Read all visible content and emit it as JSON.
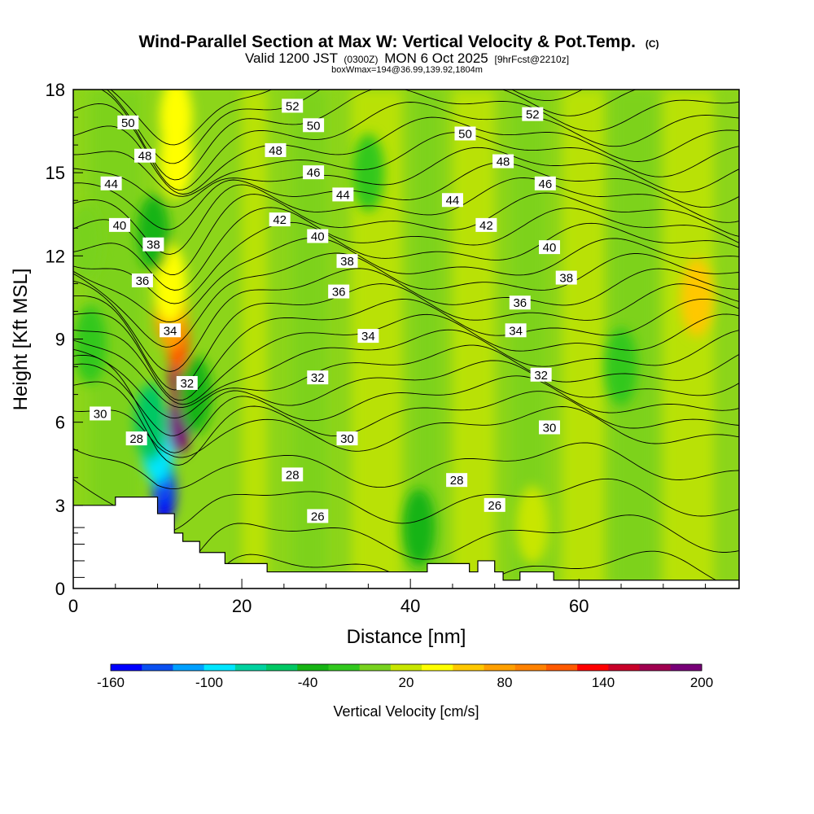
{
  "chart_data": {
    "type": "heatmap",
    "title": "Wind-Parallel Section at Max W: Vertical Velocity & Pot.Temp.",
    "title_mark": "(C)",
    "subtitle_a": "Valid 1200 JST",
    "subtitle_b": "(0300Z)",
    "subtitle_c": "MON 6 Oct 2025",
    "subtitle_d": "[9hrFcst@2210z]",
    "subtitle_e": "boxWmax=194@36.99,139.92,1804m",
    "xlabel": "Distance [nm]",
    "ylabel": "Height [Kft MSL]",
    "xlim": [
      0,
      79
    ],
    "ylim": [
      0,
      18
    ],
    "x_ticks": [
      0,
      20,
      40,
      60
    ],
    "y_ticks": [
      0,
      3,
      6,
      9,
      12,
      15,
      18
    ],
    "colorbar": {
      "label": "Vertical Velocity [cm/s]",
      "min": -160,
      "max": 200,
      "tick_values": [
        -160,
        -100,
        -40,
        20,
        80,
        140,
        200
      ],
      "colors": [
        "#0000ff",
        "#0a50f0",
        "#00a0ff",
        "#00e6ff",
        "#00d2a0",
        "#00c864",
        "#16b414",
        "#32c81e",
        "#78d21e",
        "#c8e600",
        "#ffff00",
        "#ffc800",
        "#ffa000",
        "#ff8200",
        "#ff5a00",
        "#ff0000",
        "#c80028",
        "#a00050",
        "#780078"
      ]
    },
    "terrain_kft": [
      [
        0,
        3.0
      ],
      [
        5,
        3.0
      ],
      [
        5,
        3.3
      ],
      [
        10,
        3.3
      ],
      [
        10,
        2.7
      ],
      [
        12,
        2.7
      ],
      [
        12,
        2.0
      ],
      [
        13,
        2.0
      ],
      [
        13,
        1.7
      ],
      [
        15,
        1.7
      ],
      [
        15,
        1.3
      ],
      [
        18,
        1.3
      ],
      [
        18,
        0.9
      ],
      [
        23,
        0.9
      ],
      [
        23,
        0.6
      ],
      [
        42,
        0.6
      ],
      [
        42,
        0.9
      ],
      [
        47,
        0.9
      ],
      [
        47,
        0.6
      ],
      [
        48,
        0.6
      ],
      [
        48,
        1.0
      ],
      [
        50,
        1.0
      ],
      [
        50,
        0.6
      ],
      [
        51,
        0.6
      ],
      [
        51,
        0.3
      ],
      [
        53,
        0.3
      ],
      [
        53,
        0.6
      ],
      [
        57,
        0.6
      ],
      [
        57,
        0.3
      ],
      [
        79,
        0.3
      ]
    ],
    "w_cells": [
      {
        "x": 10.8,
        "z": 3.5,
        "w": -160
      },
      {
        "x": 10.5,
        "z": 4.3,
        "w": -130
      },
      {
        "x": 10.0,
        "z": 5.2,
        "w": -90
      },
      {
        "x": 9.2,
        "z": 6.0,
        "w": -50
      },
      {
        "x": 12.6,
        "z": 6.0,
        "w": 194
      },
      {
        "x": 12.7,
        "z": 7.5,
        "w": 180
      },
      {
        "x": 12.4,
        "z": 9.0,
        "w": 120
      },
      {
        "x": 11.6,
        "z": 10.0,
        "w": 80
      },
      {
        "x": 11.5,
        "z": 11.0,
        "w": 40
      },
      {
        "x": 12.2,
        "z": 17.0,
        "w": 45
      },
      {
        "x": 12.2,
        "z": 15.5,
        "w": 30
      },
      {
        "x": 14.5,
        "z": 7.0,
        "w": -45
      },
      {
        "x": 9.5,
        "z": 12.8,
        "w": -30
      },
      {
        "x": 41.0,
        "z": 2.2,
        "w": -30
      },
      {
        "x": 54.5,
        "z": 2.3,
        "w": 25
      },
      {
        "x": 74.0,
        "z": 10.5,
        "w": 50
      },
      {
        "x": 2.0,
        "z": 8.8,
        "w": -15
      },
      {
        "x": 1.5,
        "z": 12.5,
        "w": 10
      },
      {
        "x": 35.0,
        "z": 15.0,
        "w": -12
      },
      {
        "x": 65.0,
        "z": 8.0,
        "w": -15
      }
    ],
    "theta_levels": [
      26,
      27,
      28,
      29,
      30,
      31,
      32,
      33,
      34,
      35,
      36,
      37,
      38,
      39,
      40,
      41,
      42,
      43,
      44,
      45,
      46,
      47,
      48,
      49,
      50,
      51,
      52,
      53
    ],
    "contour_labels": [
      {
        "value": "52",
        "x": 26.0,
        "z": 17.4
      },
      {
        "value": "52",
        "x": 54.5,
        "z": 17.1
      },
      {
        "value": "50",
        "x": 6.5,
        "z": 16.8
      },
      {
        "value": "50",
        "x": 28.5,
        "z": 16.7
      },
      {
        "value": "50",
        "x": 46.5,
        "z": 16.4
      },
      {
        "value": "48",
        "x": 8.5,
        "z": 15.6
      },
      {
        "value": "48",
        "x": 24.0,
        "z": 15.8
      },
      {
        "value": "48",
        "x": 51.0,
        "z": 15.4
      },
      {
        "value": "46",
        "x": 28.5,
        "z": 15.0
      },
      {
        "value": "46",
        "x": 56.0,
        "z": 14.6
      },
      {
        "value": "44",
        "x": 4.5,
        "z": 14.6
      },
      {
        "value": "44",
        "x": 32.0,
        "z": 14.2
      },
      {
        "value": "44",
        "x": 45.0,
        "z": 14.0
      },
      {
        "value": "42",
        "x": 24.5,
        "z": 13.3
      },
      {
        "value": "42",
        "x": 49.0,
        "z": 13.1
      },
      {
        "value": "40",
        "x": 5.5,
        "z": 13.1
      },
      {
        "value": "40",
        "x": 29.0,
        "z": 12.7
      },
      {
        "value": "40",
        "x": 56.5,
        "z": 12.3
      },
      {
        "value": "38",
        "x": 9.5,
        "z": 12.4
      },
      {
        "value": "38",
        "x": 32.5,
        "z": 11.8
      },
      {
        "value": "38",
        "x": 58.5,
        "z": 11.2
      },
      {
        "value": "36",
        "x": 8.2,
        "z": 11.1
      },
      {
        "value": "36",
        "x": 31.5,
        "z": 10.7
      },
      {
        "value": "36",
        "x": 53.0,
        "z": 10.3
      },
      {
        "value": "34",
        "x": 11.5,
        "z": 9.3
      },
      {
        "value": "34",
        "x": 35.0,
        "z": 9.1
      },
      {
        "value": "34",
        "x": 52.5,
        "z": 9.3
      },
      {
        "value": "32",
        "x": 13.5,
        "z": 7.4
      },
      {
        "value": "32",
        "x": 29.0,
        "z": 7.6
      },
      {
        "value": "32",
        "x": 55.5,
        "z": 7.7
      },
      {
        "value": "30",
        "x": 3.2,
        "z": 6.3
      },
      {
        "value": "30",
        "x": 32.5,
        "z": 5.4
      },
      {
        "value": "30",
        "x": 56.5,
        "z": 5.8
      },
      {
        "value": "28",
        "x": 7.5,
        "z": 5.4
      },
      {
        "value": "28",
        "x": 26.0,
        "z": 4.1
      },
      {
        "value": "28",
        "x": 45.5,
        "z": 3.9
      },
      {
        "value": "26",
        "x": 29.0,
        "z": 2.6
      },
      {
        "value": "26",
        "x": 50.0,
        "z": 3.0
      }
    ]
  }
}
